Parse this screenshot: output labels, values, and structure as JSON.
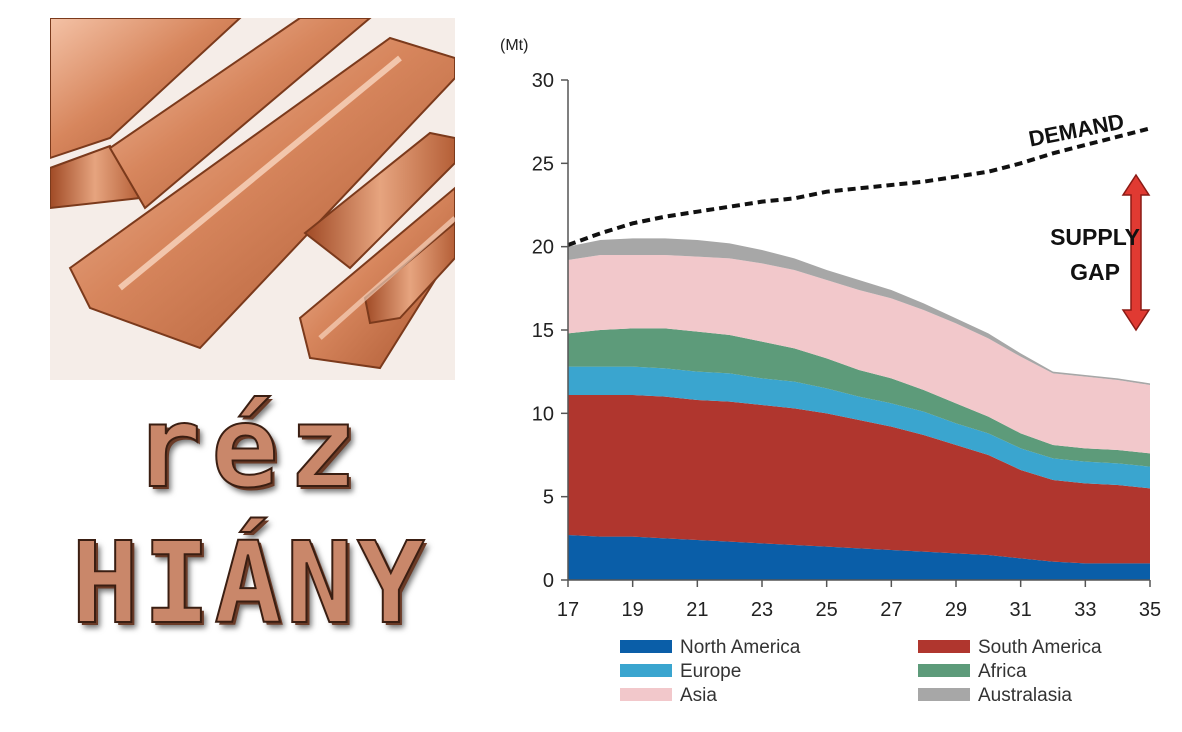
{
  "headline": {
    "line1": "réz",
    "line2": "HIÁNY"
  },
  "colors": {
    "copper_text": "#c9876a",
    "copper_light": "#f1b59a",
    "copper_dark": "#9a4f2c"
  },
  "chart_data": {
    "type": "area",
    "stacked": true,
    "unit_label": "(Mt)",
    "xlabel": "",
    "ylabel": "",
    "x": [
      17,
      18,
      19,
      20,
      21,
      22,
      23,
      24,
      25,
      26,
      27,
      28,
      29,
      30,
      31,
      32,
      33,
      34,
      35
    ],
    "xticks": [
      "17",
      "19",
      "21",
      "23",
      "25",
      "27",
      "29",
      "31",
      "33",
      "35"
    ],
    "ylim": [
      0,
      30
    ],
    "yticks": [
      "0",
      "5",
      "10",
      "15",
      "20",
      "25",
      "30"
    ],
    "grid": false,
    "legend_position": "bottom",
    "series": [
      {
        "name": "North America",
        "color": "#0a5ea8",
        "values": [
          2.7,
          2.6,
          2.6,
          2.5,
          2.4,
          2.3,
          2.2,
          2.1,
          2.0,
          1.9,
          1.8,
          1.7,
          1.6,
          1.5,
          1.3,
          1.1,
          1.0,
          1.0,
          1.0
        ]
      },
      {
        "name": "South America",
        "color": "#b0362e",
        "values": [
          8.4,
          8.5,
          8.5,
          8.5,
          8.4,
          8.4,
          8.3,
          8.2,
          8.0,
          7.7,
          7.4,
          7.0,
          6.5,
          6.0,
          5.3,
          4.9,
          4.8,
          4.7,
          4.5
        ]
      },
      {
        "name": "Europe",
        "color": "#3aa5cf",
        "values": [
          1.7,
          1.7,
          1.7,
          1.7,
          1.7,
          1.7,
          1.6,
          1.6,
          1.5,
          1.4,
          1.4,
          1.4,
          1.3,
          1.3,
          1.3,
          1.3,
          1.3,
          1.3,
          1.3
        ]
      },
      {
        "name": "Africa",
        "color": "#5d9b7a",
        "values": [
          2.0,
          2.2,
          2.3,
          2.4,
          2.4,
          2.3,
          2.2,
          2.0,
          1.8,
          1.6,
          1.5,
          1.3,
          1.2,
          1.0,
          0.9,
          0.8,
          0.8,
          0.8,
          0.8
        ]
      },
      {
        "name": "Asia",
        "color": "#f2c8cb",
        "values": [
          4.4,
          4.5,
          4.4,
          4.4,
          4.5,
          4.6,
          4.7,
          4.7,
          4.7,
          4.8,
          4.8,
          4.8,
          4.8,
          4.7,
          4.6,
          4.3,
          4.3,
          4.2,
          4.1
        ]
      },
      {
        "name": "Australasia",
        "color": "#a7a7a7",
        "values": [
          0.8,
          0.9,
          1.0,
          1.0,
          1.0,
          0.9,
          0.8,
          0.7,
          0.6,
          0.6,
          0.5,
          0.4,
          0.3,
          0.3,
          0.2,
          0.1,
          0.1,
          0.1,
          0.1
        ]
      }
    ],
    "demand": {
      "label": "DEMAND",
      "values": [
        20.1,
        20.8,
        21.4,
        21.8,
        22.1,
        22.4,
        22.7,
        22.9,
        23.3,
        23.5,
        23.7,
        23.9,
        24.2,
        24.5,
        25.0,
        25.6,
        26.1,
        26.6,
        27.1
      ]
    },
    "annotation": {
      "line1": "SUPPLY",
      "line2": "GAP",
      "arrow_color": "#e03a32",
      "arrow_from_y": 24.3,
      "arrow_to_y": 15.0,
      "arrow_x": 35
    }
  }
}
